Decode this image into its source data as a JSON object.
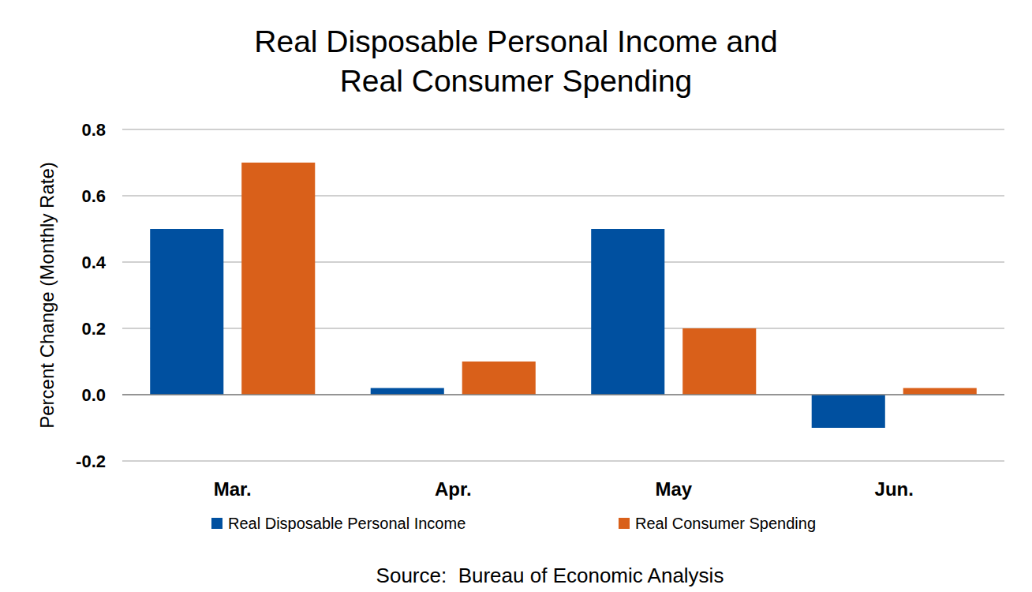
{
  "chart_data": {
    "type": "bar",
    "title": "Real Disposable Personal Income and Real Consumer Spending",
    "y_label": "Percent Change (Monthly Rate)",
    "source": "Source:  Bureau of Economic Analysis",
    "categories": [
      "Mar.",
      "Apr.",
      "May",
      "Jun."
    ],
    "series": [
      {
        "name": "Real Disposable Personal Income",
        "color": "#0050a0",
        "values": [
          0.5,
          0.02,
          0.5,
          -0.1
        ]
      },
      {
        "name": "Real Consumer Spending",
        "color": "#d9601a",
        "values": [
          0.7,
          0.1,
          0.2,
          0.02
        ]
      }
    ],
    "ylim": [
      -0.2,
      0.8
    ],
    "yticks": [
      -0.2,
      {
        "value": 0,
        "label": "0.0"
      },
      0.2,
      0.4,
      0.6,
      0.8
    ],
    "grid": true,
    "legend": "bottom"
  }
}
